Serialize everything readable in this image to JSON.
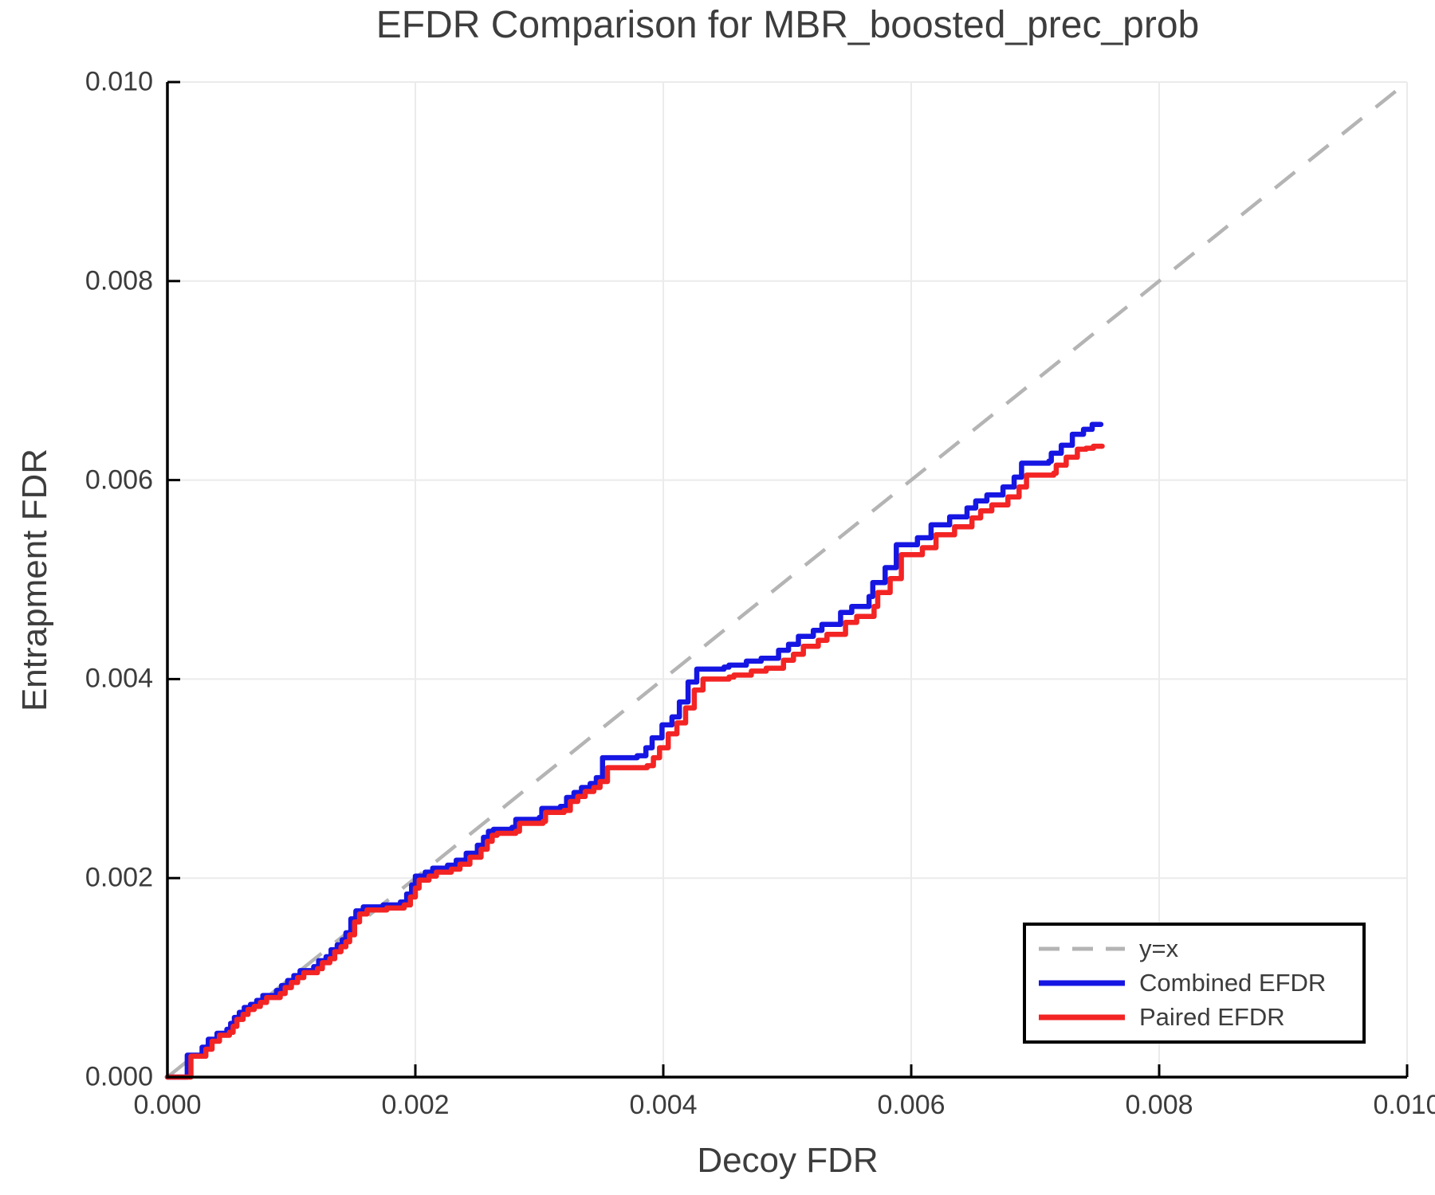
{
  "title": "EFDR Comparison for MBR_boosted_prec_prob",
  "axes": {
    "x_label": "Decoy FDR",
    "y_label": "Entrapment FDR"
  },
  "legend": {
    "items": [
      {
        "label": "y=x",
        "color": "#b4b4b4",
        "dash": true
      },
      {
        "label": "Combined EFDR",
        "color": "#1616e3",
        "dash": false
      },
      {
        "label": "Paired EFDR",
        "color": "#f32424",
        "dash": false
      }
    ]
  },
  "colors": {
    "grid": "#ebebeb",
    "spine": "#000000",
    "text": "#3c3c3c",
    "diagonal": "#b4b4b4",
    "combined": "#1616e3",
    "paired": "#f32424",
    "background": "#ffffff"
  },
  "chart_data": {
    "type": "line",
    "title": "EFDR Comparison for MBR_boosted_prec_prob",
    "xlabel": "Decoy FDR",
    "ylabel": "Entrapment FDR",
    "xlim": [
      0.0,
      0.01
    ],
    "ylim": [
      0.0,
      0.01
    ],
    "grid": true,
    "legend_position": "bottom-right",
    "x_ticks": [
      {
        "value": 0.0,
        "label": "0.000"
      },
      {
        "value": 0.002,
        "label": "0.002"
      },
      {
        "value": 0.004,
        "label": "0.004"
      },
      {
        "value": 0.006,
        "label": "0.006"
      },
      {
        "value": 0.008,
        "label": "0.008"
      },
      {
        "value": 0.01,
        "label": "0.010"
      }
    ],
    "y_ticks": [
      {
        "value": 0.0,
        "label": "0.000"
      },
      {
        "value": 0.002,
        "label": "0.002"
      },
      {
        "value": 0.004,
        "label": "0.004"
      },
      {
        "value": 0.006,
        "label": "0.006"
      },
      {
        "value": 0.008,
        "label": "0.008"
      },
      {
        "value": 0.01,
        "label": "0.010"
      }
    ],
    "diagonal": {
      "name": "y=x",
      "from": [
        0.0,
        0.0
      ],
      "to": [
        0.01,
        0.01
      ],
      "color": "#b4b4b4",
      "style": "dashed"
    },
    "series": [
      {
        "name": "Combined EFDR",
        "color": "#1616e3",
        "step": true,
        "points": [
          [
            0.0,
            0.0
          ],
          [
            0.00016,
            0.00022
          ],
          [
            0.00028,
            0.0003
          ],
          [
            0.00033,
            0.00038
          ],
          [
            0.0004,
            0.00044
          ],
          [
            0.00048,
            0.00048
          ],
          [
            0.00051,
            0.00054
          ],
          [
            0.00054,
            0.0006
          ],
          [
            0.00058,
            0.00065
          ],
          [
            0.00062,
            0.0007
          ],
          [
            0.00067,
            0.00073
          ],
          [
            0.00072,
            0.00077
          ],
          [
            0.00077,
            0.00082
          ],
          [
            0.00088,
            0.00087
          ],
          [
            0.00092,
            0.00092
          ],
          [
            0.00097,
            0.00097
          ],
          [
            0.00102,
            0.00102
          ],
          [
            0.00107,
            0.00107
          ],
          [
            0.00118,
            0.00111
          ],
          [
            0.00122,
            0.00117
          ],
          [
            0.00128,
            0.00121
          ],
          [
            0.00132,
            0.00128
          ],
          [
            0.00137,
            0.00133
          ],
          [
            0.00141,
            0.00138
          ],
          [
            0.00144,
            0.00145
          ],
          [
            0.00148,
            0.00159
          ],
          [
            0.00152,
            0.00167
          ],
          [
            0.00158,
            0.00171
          ],
          [
            0.00174,
            0.00173
          ],
          [
            0.00188,
            0.00176
          ],
          [
            0.00193,
            0.00184
          ],
          [
            0.00197,
            0.00193
          ],
          [
            0.002,
            0.00202
          ],
          [
            0.00208,
            0.00206
          ],
          [
            0.00214,
            0.0021
          ],
          [
            0.00226,
            0.00213
          ],
          [
            0.00233,
            0.00218
          ],
          [
            0.00241,
            0.00225
          ],
          [
            0.0025,
            0.00233
          ],
          [
            0.00255,
            0.00241
          ],
          [
            0.00259,
            0.00247
          ],
          [
            0.00263,
            0.00249
          ],
          [
            0.00278,
            0.00251
          ],
          [
            0.00281,
            0.00259
          ],
          [
            0.003,
            0.00261
          ],
          [
            0.00302,
            0.0027
          ],
          [
            0.00317,
            0.00272
          ],
          [
            0.00322,
            0.00281
          ],
          [
            0.00328,
            0.00286
          ],
          [
            0.00334,
            0.00291
          ],
          [
            0.00341,
            0.00295
          ],
          [
            0.00346,
            0.00301
          ],
          [
            0.00351,
            0.00321
          ],
          [
            0.00379,
            0.00323
          ],
          [
            0.00386,
            0.00331
          ],
          [
            0.00391,
            0.00341
          ],
          [
            0.00399,
            0.00354
          ],
          [
            0.00407,
            0.00362
          ],
          [
            0.00413,
            0.00377
          ],
          [
            0.0042,
            0.00397
          ],
          [
            0.00427,
            0.0041
          ],
          [
            0.00449,
            0.00412
          ],
          [
            0.00453,
            0.00414
          ],
          [
            0.00467,
            0.00418
          ],
          [
            0.00479,
            0.00421
          ],
          [
            0.00493,
            0.00429
          ],
          [
            0.00501,
            0.00435
          ],
          [
            0.00509,
            0.00443
          ],
          [
            0.00521,
            0.00449
          ],
          [
            0.00528,
            0.00455
          ],
          [
            0.00543,
            0.00467
          ],
          [
            0.00552,
            0.00473
          ],
          [
            0.00566,
            0.00483
          ],
          [
            0.00569,
            0.00497
          ],
          [
            0.00579,
            0.00512
          ],
          [
            0.00588,
            0.00535
          ],
          [
            0.00605,
            0.00542
          ],
          [
            0.00616,
            0.00555
          ],
          [
            0.00631,
            0.00563
          ],
          [
            0.00645,
            0.00572
          ],
          [
            0.00652,
            0.00579
          ],
          [
            0.00661,
            0.00585
          ],
          [
            0.00674,
            0.00593
          ],
          [
            0.00683,
            0.00603
          ],
          [
            0.00689,
            0.00617
          ],
          [
            0.00711,
            0.00619
          ],
          [
            0.00713,
            0.00627
          ],
          [
            0.00721,
            0.00635
          ],
          [
            0.0073,
            0.00646
          ],
          [
            0.00739,
            0.00651
          ],
          [
            0.00746,
            0.00656
          ],
          [
            0.00753,
            0.00656
          ]
        ]
      },
      {
        "name": "Paired EFDR",
        "color": "#f32424",
        "step": true,
        "points": [
          [
            0.0,
            0.0
          ],
          [
            0.00019,
            0.00021
          ],
          [
            0.00031,
            0.00028
          ],
          [
            0.00036,
            0.00036
          ],
          [
            0.00042,
            0.00042
          ],
          [
            0.0005,
            0.00045
          ],
          [
            0.00053,
            0.00051
          ],
          [
            0.00056,
            0.00058
          ],
          [
            0.00061,
            0.00063
          ],
          [
            0.00065,
            0.00068
          ],
          [
            0.0007,
            0.00071
          ],
          [
            0.00075,
            0.00075
          ],
          [
            0.0008,
            0.0008
          ],
          [
            0.00091,
            0.00084
          ],
          [
            0.00095,
            0.0009
          ],
          [
            0.001,
            0.00095
          ],
          [
            0.00105,
            0.001
          ],
          [
            0.0011,
            0.00105
          ],
          [
            0.00121,
            0.00109
          ],
          [
            0.00125,
            0.00115
          ],
          [
            0.00131,
            0.00119
          ],
          [
            0.00135,
            0.00126
          ],
          [
            0.0014,
            0.00131
          ],
          [
            0.00144,
            0.00136
          ],
          [
            0.00147,
            0.00143
          ],
          [
            0.00151,
            0.00156
          ],
          [
            0.00155,
            0.00164
          ],
          [
            0.00161,
            0.00168
          ],
          [
            0.00177,
            0.0017
          ],
          [
            0.00191,
            0.00173
          ],
          [
            0.00196,
            0.00181
          ],
          [
            0.002,
            0.0019
          ],
          [
            0.00203,
            0.00198
          ],
          [
            0.00211,
            0.00202
          ],
          [
            0.00217,
            0.00206
          ],
          [
            0.00229,
            0.00209
          ],
          [
            0.00236,
            0.00214
          ],
          [
            0.00244,
            0.00221
          ],
          [
            0.00253,
            0.00229
          ],
          [
            0.00258,
            0.00237
          ],
          [
            0.00262,
            0.00243
          ],
          [
            0.00266,
            0.00245
          ],
          [
            0.00281,
            0.00247
          ],
          [
            0.00284,
            0.00255
          ],
          [
            0.00303,
            0.00257
          ],
          [
            0.00305,
            0.00266
          ],
          [
            0.0032,
            0.00268
          ],
          [
            0.00325,
            0.00277
          ],
          [
            0.00331,
            0.00282
          ],
          [
            0.00337,
            0.00287
          ],
          [
            0.00344,
            0.00291
          ],
          [
            0.00349,
            0.00297
          ],
          [
            0.00355,
            0.00311
          ],
          [
            0.00387,
            0.00313
          ],
          [
            0.00392,
            0.00321
          ],
          [
            0.00397,
            0.00331
          ],
          [
            0.00404,
            0.00345
          ],
          [
            0.00411,
            0.00356
          ],
          [
            0.00418,
            0.00371
          ],
          [
            0.00425,
            0.00389
          ],
          [
            0.00432,
            0.004
          ],
          [
            0.00453,
            0.00402
          ],
          [
            0.00457,
            0.00404
          ],
          [
            0.00471,
            0.00408
          ],
          [
            0.00483,
            0.00411
          ],
          [
            0.00497,
            0.00419
          ],
          [
            0.00505,
            0.00425
          ],
          [
            0.00513,
            0.00433
          ],
          [
            0.00525,
            0.00439
          ],
          [
            0.00532,
            0.00445
          ],
          [
            0.00547,
            0.00457
          ],
          [
            0.00556,
            0.00463
          ],
          [
            0.0057,
            0.00473
          ],
          [
            0.00573,
            0.00487
          ],
          [
            0.00583,
            0.00501
          ],
          [
            0.00592,
            0.00525
          ],
          [
            0.00609,
            0.00532
          ],
          [
            0.0062,
            0.00545
          ],
          [
            0.00635,
            0.00553
          ],
          [
            0.00649,
            0.00562
          ],
          [
            0.00656,
            0.00569
          ],
          [
            0.00665,
            0.00575
          ],
          [
            0.00678,
            0.00583
          ],
          [
            0.00687,
            0.00593
          ],
          [
            0.00693,
            0.00605
          ],
          [
            0.00715,
            0.00607
          ],
          [
            0.00717,
            0.00615
          ],
          [
            0.00725,
            0.00623
          ],
          [
            0.00734,
            0.00631
          ],
          [
            0.00741,
            0.00632
          ],
          [
            0.00747,
            0.00634
          ],
          [
            0.00754,
            0.00634
          ]
        ]
      }
    ]
  }
}
